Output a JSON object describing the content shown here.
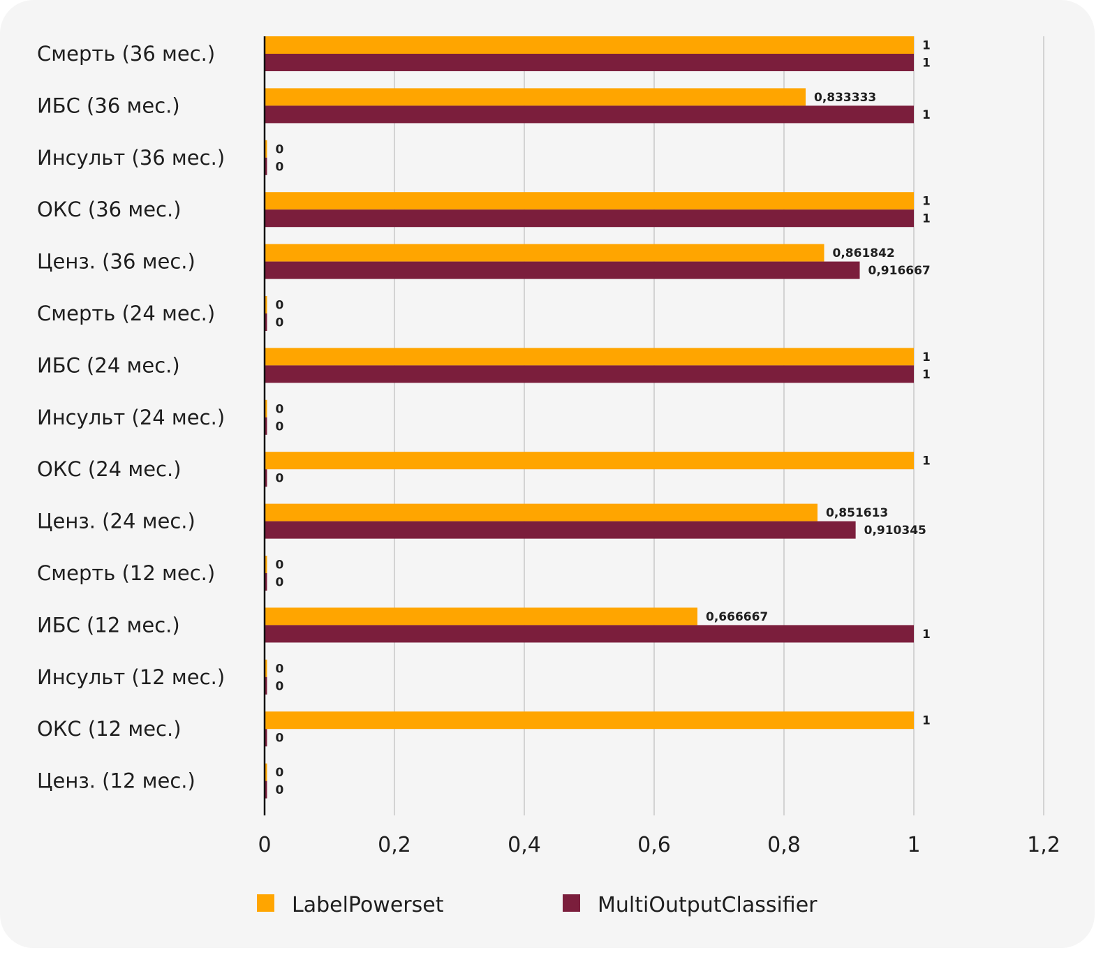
{
  "chart_data": {
    "type": "bar",
    "orientation": "horizontal",
    "title": "",
    "xlabel": "",
    "ylabel": "",
    "xlim": [
      0,
      1.2
    ],
    "x_ticks": [
      "0",
      "0,2",
      "0,4",
      "0,6",
      "0,8",
      "1",
      "1,2"
    ],
    "x_tick_values": [
      0,
      0.2,
      0.4,
      0.6,
      0.8,
      1.0,
      1.2
    ],
    "grid": true,
    "legend_position": "bottom",
    "categories": [
      "Смерть (36 мес.)",
      "ИБС (36 мес.)",
      "Инсульт (36 мес.)",
      "ОКС (36 мес.)",
      "Ценз. (36 мес.)",
      "Смерть (24 мес.)",
      "ИБС (24 мес.)",
      "Инсульт (24 мес.)",
      "ОКС (24 мес.)",
      "Ценз. (24 мес.)",
      "Смерть (12 мес.)",
      "ИБС (12 мес.)",
      "Инсульт (12 мес.)",
      "ОКС (12 мес.)",
      "Ценз. (12 мес.)"
    ],
    "series": [
      {
        "name": "LabelPowerset",
        "color": "#FFA500",
        "values": [
          1,
          0.833333,
          0,
          1,
          0.861842,
          0,
          1,
          0,
          1,
          0.851613,
          0,
          0.666667,
          0,
          1,
          0
        ],
        "labels": [
          "1",
          "0,833333",
          "0",
          "1",
          "0,861842",
          "0",
          "1",
          "0",
          "1",
          "0,851613",
          "0",
          "0,666667",
          "0",
          "1",
          "0"
        ]
      },
      {
        "name": "MultiOutputClassifier",
        "color": "#7B1E3C",
        "values": [
          1,
          1,
          0,
          1,
          0.916667,
          0,
          1,
          0,
          0,
          0.910345,
          0,
          1,
          0,
          0,
          0
        ],
        "labels": [
          "1",
          "1",
          "0",
          "1",
          "0,916667",
          "0",
          "1",
          "0",
          "0",
          "0,910345",
          "0",
          "1",
          "0",
          "0",
          "0"
        ]
      }
    ]
  }
}
